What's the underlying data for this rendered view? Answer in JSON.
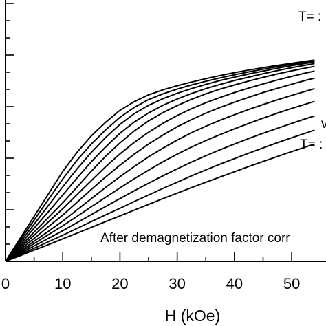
{
  "chart_data": {
    "type": "line",
    "xlabel": "H (kOe)",
    "ylabel": "",
    "title": "",
    "xlim": [
      0,
      56
    ],
    "ylim": [
      0,
      1
    ],
    "x_ticks": [
      0,
      10,
      20,
      30,
      40,
      50
    ],
    "x_tick_labels": [
      "0",
      "10",
      "20",
      "30",
      "40",
      "50"
    ],
    "grid": false,
    "annotations": {
      "top_label": "T= :",
      "mid_label": "v",
      "bottom_label": "T= :",
      "note": "After demagnetization factor corr"
    },
    "x": [
      0,
      2.5,
      5,
      7.5,
      10,
      12.5,
      15,
      17.5,
      20,
      22.5,
      25,
      27.5,
      30,
      32.5,
      35,
      37.5,
      40,
      42.5,
      45,
      47.5,
      50,
      52.5,
      54
    ],
    "series": [
      {
        "values": [
          0,
          0.086,
          0.172,
          0.258,
          0.344,
          0.417,
          0.48,
          0.532,
          0.578,
          0.611,
          0.637,
          0.656,
          0.672,
          0.686,
          0.699,
          0.711,
          0.722,
          0.732,
          0.741,
          0.75,
          0.758,
          0.766,
          0.77
        ]
      },
      {
        "values": [
          0,
          0.079,
          0.158,
          0.237,
          0.315,
          0.387,
          0.449,
          0.503,
          0.551,
          0.589,
          0.619,
          0.641,
          0.659,
          0.675,
          0.689,
          0.702,
          0.714,
          0.725,
          0.735,
          0.745,
          0.754,
          0.762,
          0.767
        ]
      },
      {
        "values": [
          0,
          0.071,
          0.142,
          0.214,
          0.285,
          0.354,
          0.417,
          0.474,
          0.524,
          0.565,
          0.597,
          0.622,
          0.643,
          0.661,
          0.677,
          0.692,
          0.705,
          0.717,
          0.728,
          0.739,
          0.749,
          0.758,
          0.763
        ]
      },
      {
        "values": [
          0,
          0.063,
          0.127,
          0.19,
          0.254,
          0.319,
          0.381,
          0.438,
          0.49,
          0.533,
          0.568,
          0.597,
          0.621,
          0.642,
          0.661,
          0.677,
          0.692,
          0.705,
          0.718,
          0.73,
          0.741,
          0.751,
          0.757
        ]
      },
      {
        "values": [
          0,
          0.056,
          0.112,
          0.168,
          0.224,
          0.284,
          0.345,
          0.402,
          0.453,
          0.499,
          0.537,
          0.569,
          0.596,
          0.62,
          0.641,
          0.659,
          0.675,
          0.69,
          0.704,
          0.717,
          0.729,
          0.74,
          0.746
        ]
      },
      {
        "values": [
          0,
          0.05,
          0.1,
          0.151,
          0.201,
          0.255,
          0.309,
          0.362,
          0.411,
          0.455,
          0.494,
          0.528,
          0.558,
          0.584,
          0.607,
          0.627,
          0.646,
          0.663,
          0.679,
          0.694,
          0.708,
          0.721,
          0.728
        ]
      },
      {
        "values": [
          0,
          0.044,
          0.088,
          0.133,
          0.177,
          0.226,
          0.275,
          0.323,
          0.368,
          0.41,
          0.449,
          0.483,
          0.515,
          0.542,
          0.567,
          0.589,
          0.609,
          0.628,
          0.646,
          0.662,
          0.678,
          0.693,
          0.701
        ]
      },
      {
        "values": [
          0,
          0.038,
          0.077,
          0.115,
          0.154,
          0.197,
          0.24,
          0.283,
          0.324,
          0.363,
          0.4,
          0.433,
          0.464,
          0.492,
          0.517,
          0.54,
          0.561,
          0.581,
          0.6,
          0.618,
          0.635,
          0.651,
          0.661
        ]
      },
      {
        "values": [
          0,
          0.034,
          0.068,
          0.102,
          0.136,
          0.172,
          0.209,
          0.245,
          0.281,
          0.316,
          0.349,
          0.381,
          0.41,
          0.437,
          0.462,
          0.485,
          0.507,
          0.528,
          0.548,
          0.567,
          0.585,
          0.602,
          0.612
        ]
      },
      {
        "values": [
          0,
          0.029,
          0.059,
          0.088,
          0.117,
          0.148,
          0.179,
          0.21,
          0.24,
          0.27,
          0.299,
          0.327,
          0.354,
          0.38,
          0.404,
          0.427,
          0.449,
          0.47,
          0.49,
          0.509,
          0.528,
          0.546,
          0.556
        ]
      },
      {
        "values": [
          0,
          0.025,
          0.05,
          0.075,
          0.1,
          0.126,
          0.152,
          0.178,
          0.203,
          0.229,
          0.254,
          0.279,
          0.303,
          0.327,
          0.35,
          0.372,
          0.393,
          0.414,
          0.434,
          0.454,
          0.473,
          0.491,
          0.502
        ]
      },
      {
        "values": [
          0,
          0.021,
          0.043,
          0.064,
          0.086,
          0.108,
          0.13,
          0.152,
          0.174,
          0.196,
          0.218,
          0.24,
          0.261,
          0.282,
          0.303,
          0.323,
          0.343,
          0.363,
          0.382,
          0.401,
          0.42,
          0.438,
          0.449
        ]
      }
    ]
  }
}
